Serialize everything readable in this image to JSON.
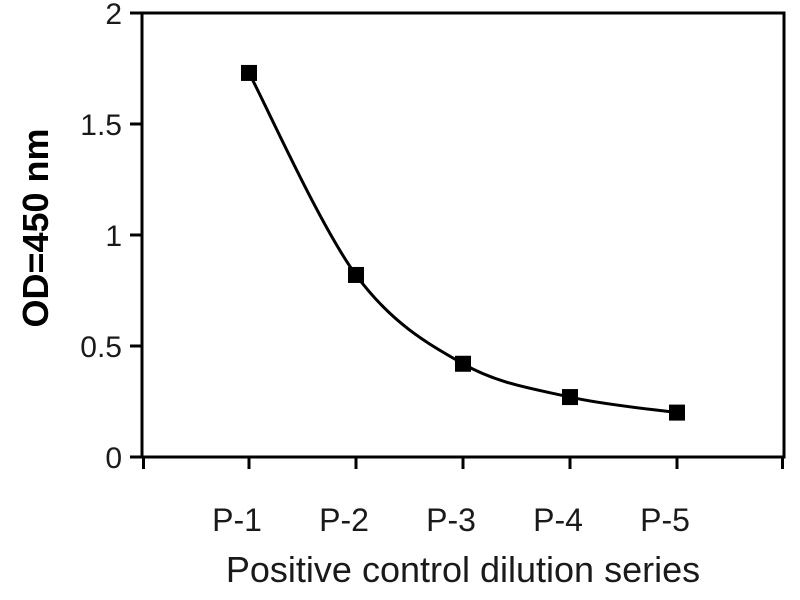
{
  "figure": {
    "background": "#ffffff",
    "text_color": "#1a1a1a",
    "line_color": "#000000"
  },
  "chart_data": {
    "type": "line",
    "title": "",
    "categories": [
      "P-1",
      "P-2",
      "P-3",
      "P-4",
      "P-5"
    ],
    "series": [
      {
        "values": [
          1.73,
          0.82,
          0.42,
          0.27,
          0.2
        ],
        "color": "#000000",
        "marker": "square",
        "marker_color": "#000000",
        "line_style": "smooth"
      }
    ],
    "xlabel": "Positive control dilution series",
    "ylabel": "OD=450 nm",
    "ylim": [
      0,
      2
    ],
    "yticks": [
      0,
      0.5,
      1,
      1.5,
      2
    ],
    "grid": false,
    "legend": "none"
  }
}
